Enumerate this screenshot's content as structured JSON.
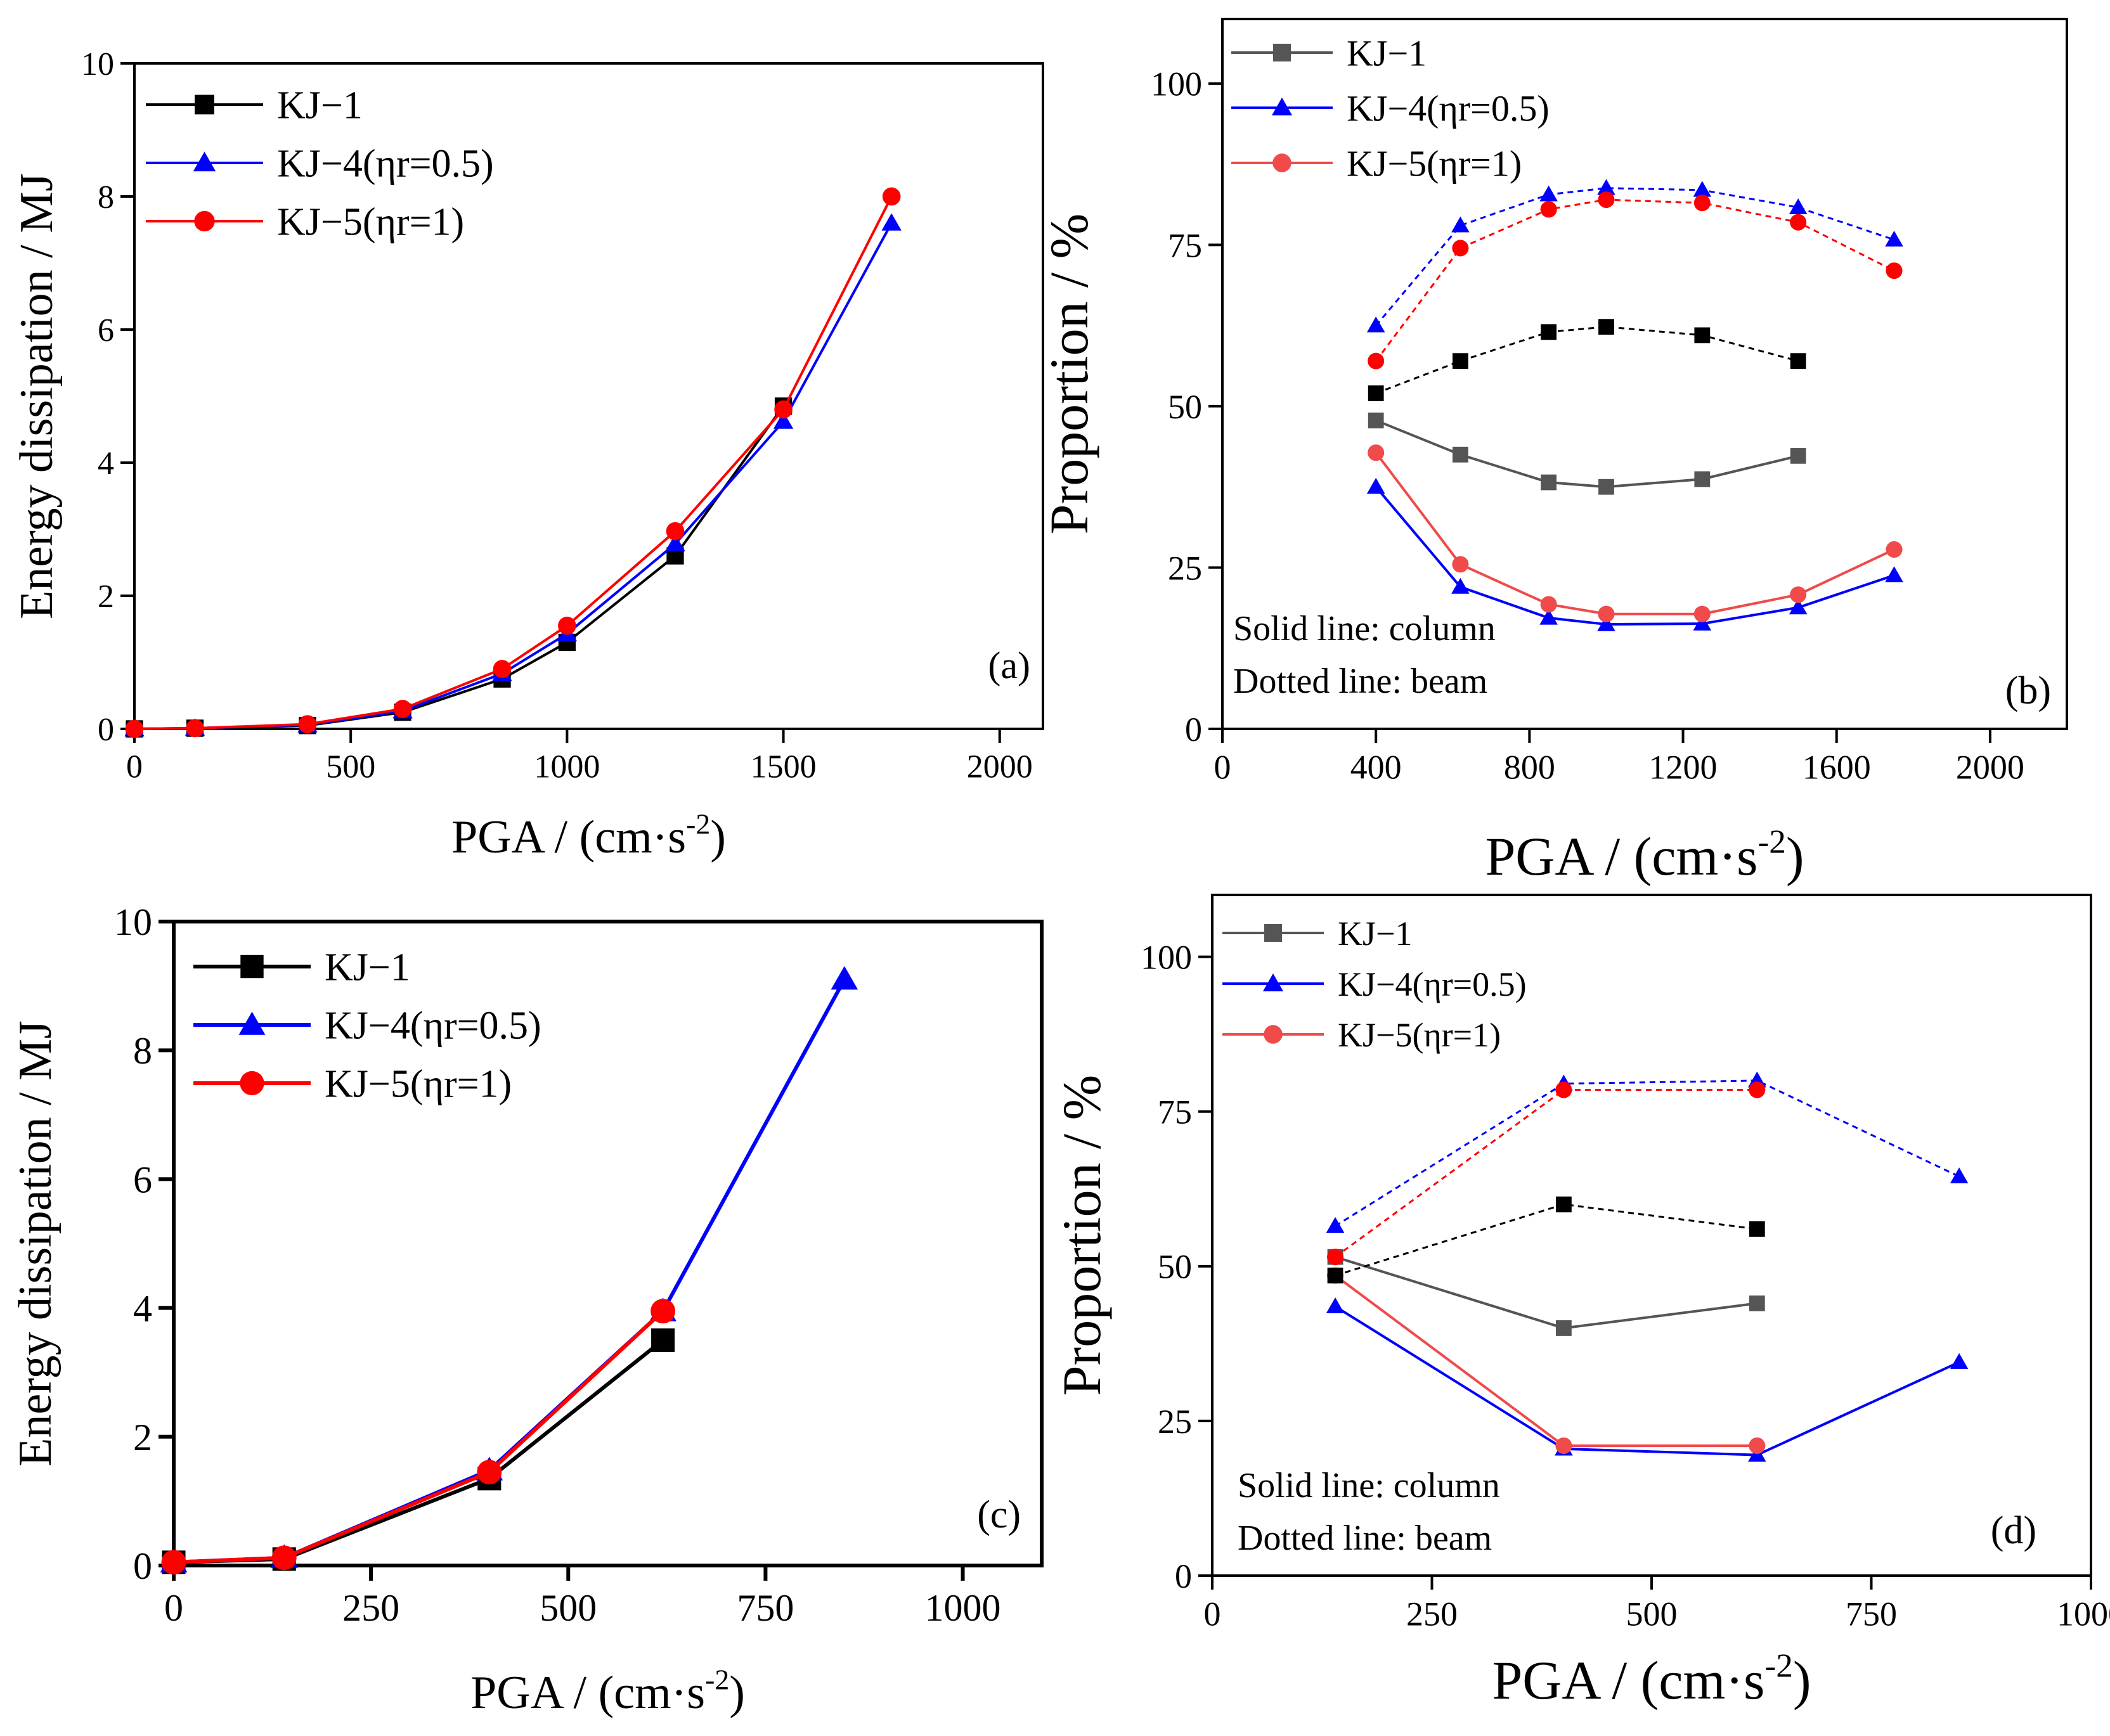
{
  "figure": {
    "colors": {
      "black": "#000000",
      "blue": "#0000ff",
      "red": "#ff0000",
      "gray": "#555555",
      "lightred": "#f04a4a"
    }
  },
  "chart_data": [
    {
      "id": "a",
      "type": "line",
      "panel_label": "(a)",
      "xlabel": "PGA / (cm·s",
      "xlabel_sup": "-2",
      "xlabel_close": ")",
      "ylabel": "Energy dissipation / MJ",
      "xlim": [
        0,
        2100
      ],
      "ylim": [
        0,
        10
      ],
      "xticks": [
        0,
        500,
        1000,
        1500,
        2000
      ],
      "yticks": [
        0,
        2,
        4,
        6,
        8,
        10
      ],
      "series": [
        {
          "name": "KJ−1",
          "color": "#000000",
          "marker": "square",
          "style": "solid",
          "x": [
            0,
            140,
            400,
            620,
            850,
            1000,
            1250,
            1500
          ],
          "y": [
            0,
            0.01,
            0.05,
            0.25,
            0.75,
            1.3,
            2.6,
            4.85
          ]
        },
        {
          "name": "KJ−4(ηr=0.5)",
          "color": "#0000ff",
          "marker": "triangle",
          "style": "solid",
          "x": [
            0,
            140,
            400,
            620,
            850,
            1000,
            1250,
            1500,
            1750
          ],
          "y": [
            0,
            0.01,
            0.06,
            0.27,
            0.83,
            1.43,
            2.78,
            4.62,
            7.6
          ]
        },
        {
          "name": "KJ−5(ηr=1)",
          "color": "#ff0000",
          "marker": "circle",
          "style": "solid",
          "x": [
            0,
            140,
            400,
            620,
            850,
            1000,
            1250,
            1500,
            1750
          ],
          "y": [
            0,
            0.01,
            0.07,
            0.3,
            0.9,
            1.55,
            2.97,
            4.8,
            8.0
          ]
        }
      ],
      "legend": "top-left"
    },
    {
      "id": "b",
      "type": "line",
      "panel_label": "(b)",
      "xlabel": "PGA / (cm·s",
      "xlabel_sup": "-2",
      "xlabel_close": ")",
      "ylabel": "Proportion / %",
      "xlim": [
        0,
        2200
      ],
      "ylim": [
        0,
        110
      ],
      "xticks": [
        0,
        400,
        800,
        1200,
        1600,
        2000
      ],
      "yticks": [
        0,
        25,
        50,
        75,
        100
      ],
      "note": [
        "Solid line: column",
        "Dotted line: beam"
      ],
      "series": [
        {
          "name": "KJ−1",
          "legend": true,
          "color": "#555555",
          "marker": "square",
          "style": "solid",
          "x": [
            400,
            620,
            850,
            1000,
            1250,
            1500
          ],
          "y": [
            47.8,
            42.5,
            38.2,
            37.5,
            38.7,
            42.3
          ]
        },
        {
          "name": "KJ−4(ηr=0.5)",
          "legend": true,
          "color": "#0000ff",
          "marker": "triangle",
          "style": "solid",
          "x": [
            400,
            620,
            850,
            1000,
            1250,
            1500,
            1750
          ],
          "y": [
            37.5,
            22,
            17.2,
            16.2,
            16.3,
            18.8,
            23.8
          ]
        },
        {
          "name": "KJ−5(ηr=1)",
          "legend": true,
          "color": "#f04a4a",
          "marker": "circle",
          "style": "solid",
          "x": [
            400,
            620,
            850,
            1000,
            1250,
            1500,
            1750
          ],
          "y": [
            42.8,
            25.5,
            19.3,
            17.8,
            17.8,
            20.8,
            27.8
          ]
        },
        {
          "name": "KJ−1 beam",
          "legend": false,
          "color": "#000000",
          "marker": "square",
          "style": "dotted",
          "x": [
            400,
            620,
            850,
            1000,
            1250,
            1500
          ],
          "y": [
            52,
            57,
            61.5,
            62.3,
            61,
            57
          ]
        },
        {
          "name": "KJ−4 beam",
          "legend": false,
          "color": "#0000ff",
          "marker": "triangle",
          "style": "dotted",
          "x": [
            400,
            620,
            850,
            1000,
            1250,
            1500,
            1750
          ],
          "y": [
            62.5,
            78,
            82.8,
            83.8,
            83.5,
            80.8,
            75.8
          ]
        },
        {
          "name": "KJ−5 beam",
          "legend": false,
          "color": "#ff0000",
          "marker": "circle",
          "style": "dotted",
          "x": [
            400,
            620,
            850,
            1000,
            1250,
            1500,
            1750
          ],
          "y": [
            57,
            74.5,
            80.5,
            82,
            81.5,
            78.5,
            71
          ]
        }
      ],
      "legend": "top-left"
    },
    {
      "id": "c",
      "type": "line",
      "panel_label": "(c)",
      "xlabel": "PGA / (cm·s",
      "xlabel_sup": "-2",
      "xlabel_close": ")",
      "ylabel": "Energy dissipation / MJ",
      "xlim": [
        0,
        1100
      ],
      "ylim": [
        0,
        10
      ],
      "xticks": [
        0,
        250,
        500,
        750,
        1000
      ],
      "yticks": [
        0,
        2,
        4,
        6,
        8,
        10
      ],
      "series": [
        {
          "name": "KJ−1",
          "color": "#000000",
          "marker": "square",
          "style": "solid",
          "x": [
            0,
            140,
            400,
            620
          ],
          "y": [
            0.05,
            0.1,
            1.35,
            3.5
          ]
        },
        {
          "name": "KJ−4(ηr=0.5)",
          "color": "#0000ff",
          "marker": "triangle",
          "style": "solid",
          "x": [
            0,
            140,
            400,
            620,
            850
          ],
          "y": [
            0.05,
            0.12,
            1.48,
            3.95,
            9.1
          ]
        },
        {
          "name": "KJ−5(ηr=1)",
          "color": "#ff0000",
          "marker": "circle",
          "style": "solid",
          "x": [
            0,
            140,
            400,
            620
          ],
          "y": [
            0.05,
            0.12,
            1.45,
            3.95
          ]
        }
      ],
      "legend": "top-left"
    },
    {
      "id": "d",
      "type": "line",
      "panel_label": "(d)",
      "xlabel": "PGA / (cm·s",
      "xlabel_sup": "-2",
      "xlabel_close": ")",
      "ylabel": "Proportion / %",
      "xlim": [
        0,
        1000
      ],
      "ylim": [
        0,
        110
      ],
      "xticks": [
        0,
        250,
        500,
        750,
        1000
      ],
      "yticks": [
        0,
        25,
        50,
        75,
        100
      ],
      "note": [
        "Solid line: column",
        "Dotted line: beam"
      ],
      "series": [
        {
          "name": "KJ−1",
          "legend": true,
          "color": "#555555",
          "marker": "square",
          "style": "solid",
          "x": [
            140,
            400,
            620
          ],
          "y": [
            51.5,
            40,
            44
          ]
        },
        {
          "name": "KJ−4(ηr=0.5)",
          "legend": true,
          "color": "#0000ff",
          "marker": "triangle",
          "style": "solid",
          "x": [
            140,
            400,
            620,
            850
          ],
          "y": [
            43.5,
            20.5,
            19.5,
            34.5
          ]
        },
        {
          "name": "KJ−5(ηr=1)",
          "legend": true,
          "color": "#f04a4a",
          "marker": "circle",
          "style": "solid",
          "x": [
            140,
            400,
            620
          ],
          "y": [
            48.5,
            21,
            21
          ]
        },
        {
          "name": "KJ−1 beam",
          "legend": false,
          "color": "#000000",
          "marker": "square",
          "style": "dotted",
          "x": [
            140,
            400,
            620
          ],
          "y": [
            48.5,
            60,
            56
          ]
        },
        {
          "name": "KJ−4 beam",
          "legend": false,
          "color": "#0000ff",
          "marker": "triangle",
          "style": "dotted",
          "x": [
            140,
            400,
            620,
            850
          ],
          "y": [
            56.5,
            79.5,
            80,
            64.5
          ]
        },
        {
          "name": "KJ−5 beam",
          "legend": false,
          "color": "#ff0000",
          "marker": "circle",
          "style": "dotted",
          "x": [
            140,
            400,
            620
          ],
          "y": [
            51.5,
            78.5,
            78.5
          ]
        }
      ],
      "legend": "top-left"
    }
  ]
}
